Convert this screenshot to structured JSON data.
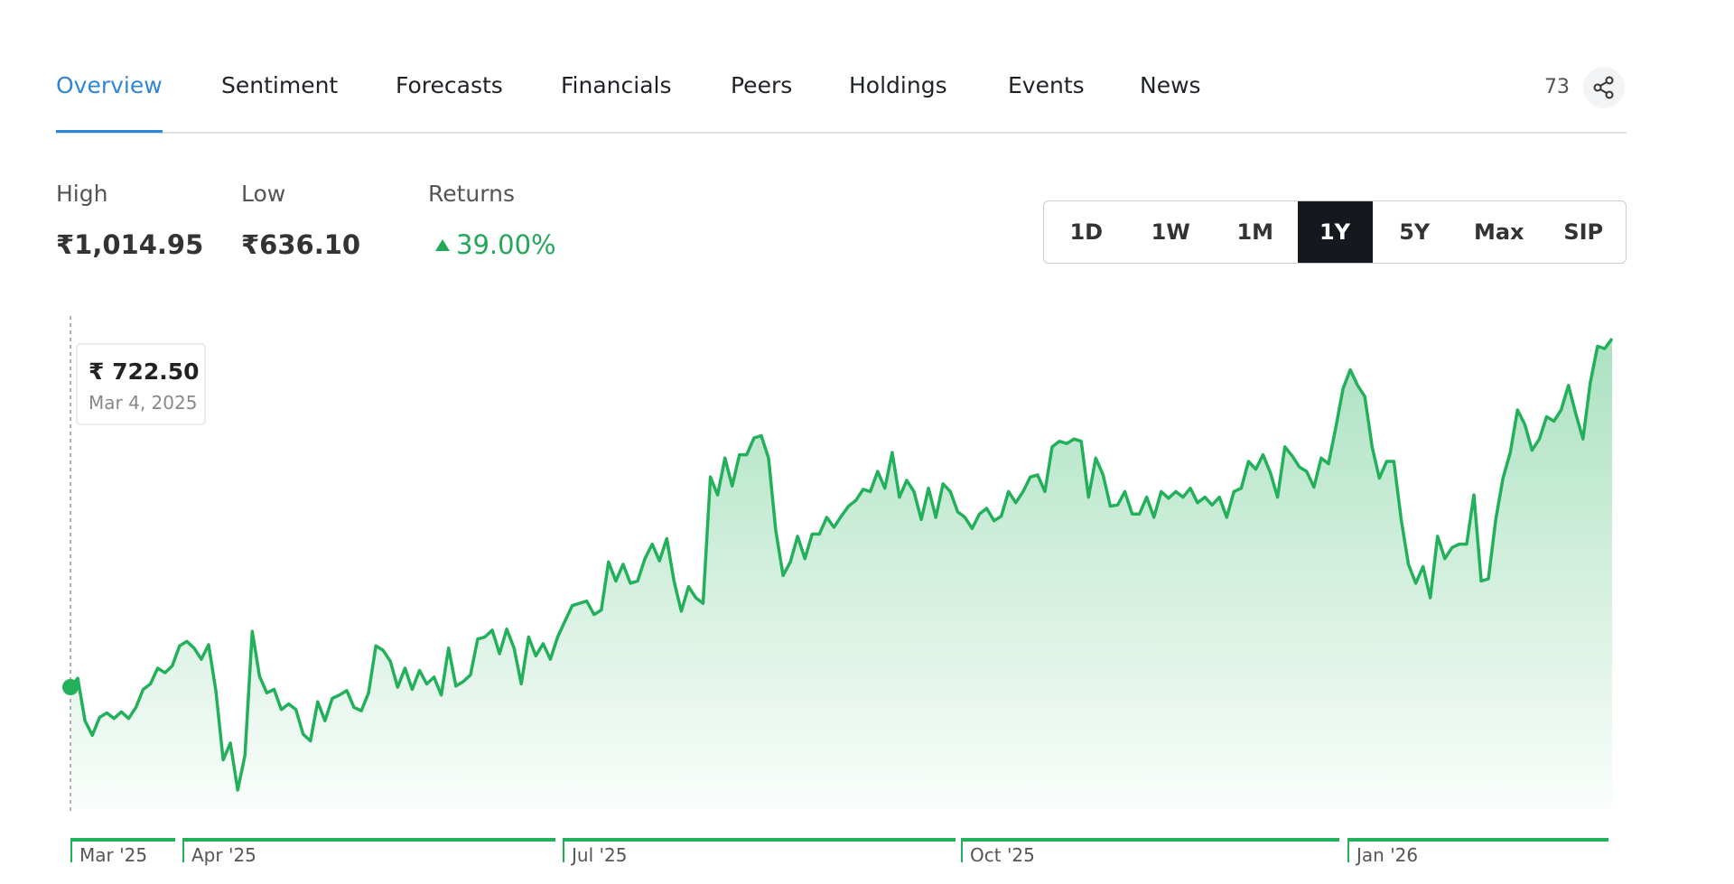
{
  "tabs": [
    "Overview",
    "Sentiment",
    "Forecasts",
    "Financials",
    "Peers",
    "Holdings",
    "Events",
    "News"
  ],
  "active_tab": "Overview",
  "share_count": "73",
  "stats": [
    {
      "label": "High",
      "value": "₹1,014.95"
    },
    {
      "label": "Low",
      "value": "₹636.10"
    }
  ],
  "returns": {
    "label": "Returns",
    "value": "39.00%"
  },
  "ranges": [
    "1D",
    "1W",
    "1M",
    "1Y",
    "5Y",
    "Max",
    "SIP"
  ],
  "active_range": "1Y",
  "chart_data": {
    "type": "area",
    "color": "#22b05a",
    "tooltip": {
      "value": "₹ 722.50",
      "date": "Mar 4, 2025"
    },
    "xlabels": [
      "Mar '25",
      "Apr '25",
      "Jul '25",
      "Oct '25",
      "Jan '26"
    ],
    "values": [
      722.5,
      729.9,
      694.3,
      682.1,
      697.1,
      700.9,
      696.2,
      701.8,
      696.2,
      705.5,
      720.6,
      725.2,
      738.4,
      734.6,
      740.3,
      757.1,
      760.9,
      755.3,
      745.9,
      758.1,
      719.6,
      661.5,
      675.5,
      636.1,
      665.2,
      769.3,
      731.8,
      717.7,
      720.6,
      703.7,
      708.4,
      703.7,
      683.0,
      677.4,
      710.2,
      694.3,
      713.0,
      715.9,
      719.6,
      705.5,
      702.7,
      717.7,
      757.1,
      753.4,
      744.0,
      722.4,
      738.4,
      720.6,
      736.5,
      725.2,
      730.9,
      715.9,
      755.3,
      723.4,
      727.1,
      732.7,
      762.8,
      764.6,
      770.3,
      750.6,
      771.2,
      755.3,
      725.2,
      764.6,
      748.7,
      759.0,
      745.9,
      764.6,
      777.8,
      790.9,
      792.8,
      794.7,
      783.4,
      787.2,
      827.5,
      811.5,
      825.6,
      809.7,
      811.5,
      830.3,
      842.5,
      828.4,
      847.2,
      811.5,
      786.2,
      806.8,
      797.5,
      792.8,
      898.8,
      883.8,
      914.7,
      891.3,
      917.5,
      917.5,
      931.6,
      933.5,
      914.7,
      853.7,
      816.2,
      827.5,
      849.1,
      830.3,
      850.9,
      850.9,
      865.0,
      856.6,
      865.9,
      874.4,
      879.1,
      888.5,
      886.6,
      903.5,
      889.4,
      919.4,
      881.9,
      896.0,
      886.6,
      863.1,
      889.4,
      865.0,
      893.1,
      886.6,
      869.7,
      865.0,
      855.6,
      867.8,
      872.5,
      862.2,
      865.9,
      886.6,
      877.2,
      886.6,
      898.8,
      900.6,
      886.6,
      924.1,
      928.8,
      926.9,
      930.7,
      928.8,
      881.9,
      914.7,
      900.6,
      874.4,
      875.3,
      886.6,
      867.8,
      867.8,
      881.9,
      865.0,
      886.6,
      881.0,
      886.6,
      881.9,
      889.4,
      877.2,
      881.9,
      875.3,
      881.9,
      865.0,
      886.6,
      889.4,
      911.9,
      905.3,
      917.5,
      902.5,
      881.9,
      924.1,
      916.6,
      907.2,
      903.5,
      890.3,
      914.7,
      910.0,
      940.0,
      972.9,
      988.8,
      975.7,
      966.3,
      924.1,
      897.8,
      911.9,
      911.9,
      863.1,
      825.6,
      809.7,
      823.7,
      797.5,
      849.1,
      830.3,
      839.7,
      842.5,
      842.5,
      883.8,
      811.5,
      813.4,
      863.1,
      897.8,
      919.4,
      955.1,
      942.9,
      921.3,
      930.7,
      949.4,
      945.7,
      955.1,
      975.7,
      952.2,
      930.7,
      977.6,
      1008.5,
      1006.6,
      1014.95
    ]
  }
}
